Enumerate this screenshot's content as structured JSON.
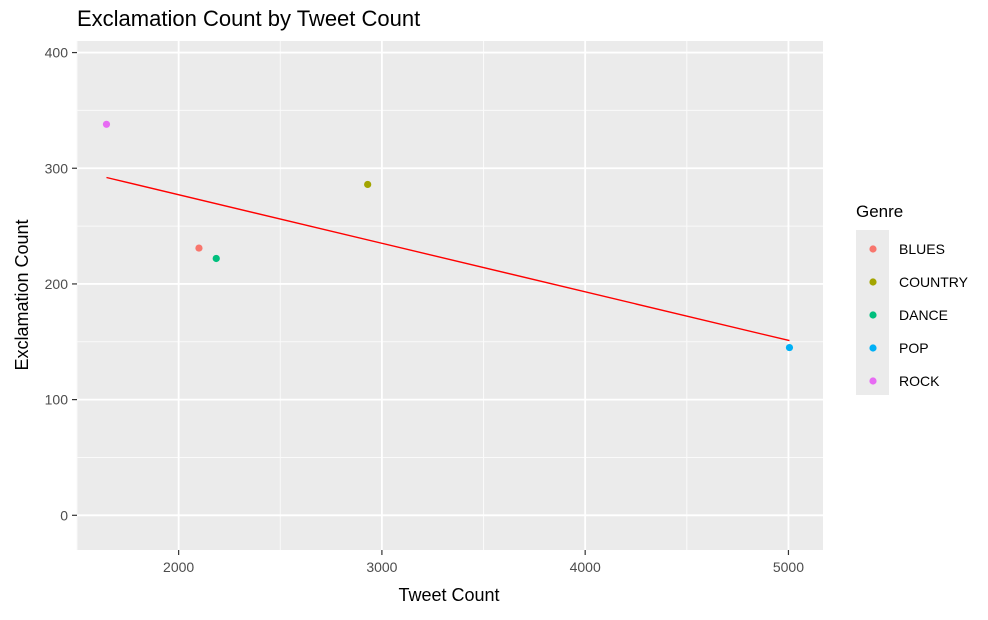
{
  "chart_data": {
    "type": "scatter",
    "title": "Exclamation Count by Tweet Count",
    "xlabel": "Tweet Count",
    "ylabel": "Exclamation Count",
    "xlim": [
      1500,
      5170
    ],
    "ylim": [
      -30,
      410
    ],
    "x_ticks": [
      2000,
      3000,
      4000,
      5000
    ],
    "y_ticks": [
      0,
      100,
      200,
      300,
      400
    ],
    "x_minor": [
      1500,
      2500,
      3500,
      4500
    ],
    "y_minor": [
      50,
      150,
      250,
      350
    ],
    "grid": true,
    "legend": {
      "title": "Genre",
      "position": "right"
    },
    "series": [
      {
        "name": "BLUES",
        "color": "#F8766D",
        "points": [
          {
            "x": 2100,
            "y": 231
          }
        ]
      },
      {
        "name": "COUNTRY",
        "color": "#A3A500",
        "points": [
          {
            "x": 2930,
            "y": 286
          }
        ]
      },
      {
        "name": "DANCE",
        "color": "#00BF7D",
        "points": [
          {
            "x": 2185,
            "y": 222
          }
        ]
      },
      {
        "name": "POP",
        "color": "#00B0F6",
        "points": [
          {
            "x": 5005,
            "y": 145
          }
        ]
      },
      {
        "name": "ROCK",
        "color": "#E76BF3",
        "points": [
          {
            "x": 1645,
            "y": 338
          }
        ]
      }
    ],
    "trend_line": {
      "color": "#FF0000",
      "from": {
        "x": 1645,
        "y": 292
      },
      "to": {
        "x": 5005,
        "y": 151
      }
    }
  }
}
